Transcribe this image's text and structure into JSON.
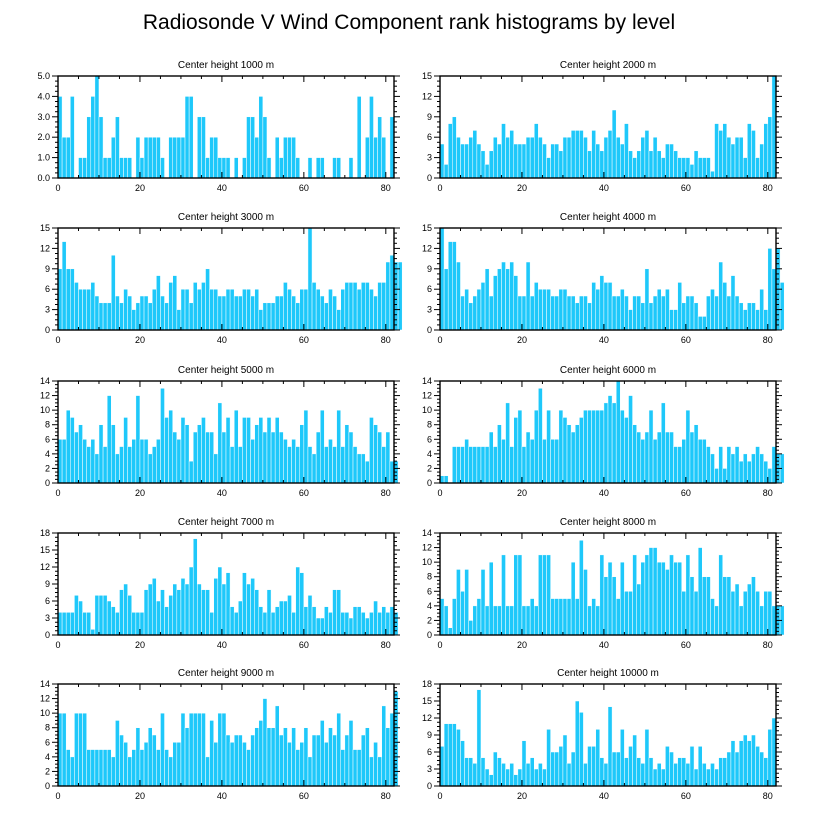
{
  "figure_title": "Radiosonde V Wind Component rank histograms by level",
  "colors": {
    "bar": "#1ec8fa",
    "frame": "#000000",
    "background": "#ffffff"
  },
  "chart_data": [
    {
      "type": "bar",
      "title": "Center height 1000 m",
      "xlim": [
        0,
        82
      ],
      "ylim": [
        0,
        5
      ],
      "xticks": [
        0,
        20,
        40,
        60,
        80
      ],
      "yticks": [
        0,
        1,
        2,
        3,
        4,
        5
      ],
      "ytick_labels": [
        "0.0",
        "1.0",
        "2.0",
        "3.0",
        "4.0",
        "5.0"
      ],
      "values": [
        4,
        2,
        2,
        4,
        0,
        1,
        1,
        3,
        4,
        5,
        3,
        1,
        1,
        2,
        3,
        1,
        1,
        1,
        0,
        2,
        1,
        2,
        2,
        2,
        2,
        1,
        0,
        2,
        2,
        2,
        2,
        4,
        4,
        0,
        3,
        3,
        1,
        2,
        2,
        1,
        1,
        1,
        0,
        1,
        0,
        1,
        3,
        3,
        2,
        4,
        3,
        1,
        0,
        2,
        1,
        2,
        2,
        2,
        1,
        0,
        0,
        1,
        0,
        1,
        1,
        0,
        0,
        1,
        1,
        0,
        0,
        1,
        0,
        4,
        0,
        2,
        4,
        2,
        3,
        2,
        0,
        3
      ]
    },
    {
      "type": "bar",
      "title": "Center height 2000 m",
      "xlim": [
        0,
        82
      ],
      "ylim": [
        0,
        15
      ],
      "xticks": [
        0,
        20,
        40,
        60,
        80
      ],
      "yticks": [
        0,
        3,
        6,
        9,
        12,
        15
      ],
      "ytick_labels": [
        "0",
        "3",
        "6",
        "9",
        "12",
        "15"
      ],
      "values": [
        5,
        2,
        8,
        9,
        6,
        5,
        5,
        6,
        7,
        5,
        4,
        2,
        4,
        6,
        5,
        8,
        6,
        7,
        5,
        5,
        5,
        6,
        6,
        8,
        6,
        5,
        3,
        5,
        5,
        4,
        6,
        6,
        7,
        7,
        7,
        6,
        4,
        7,
        5,
        4,
        6,
        7,
        10,
        6,
        5,
        8,
        4,
        3,
        4,
        6,
        7,
        4,
        6,
        4,
        3,
        5,
        5,
        4,
        3,
        3,
        3,
        2,
        4,
        3,
        3,
        3,
        1,
        8,
        7,
        8,
        6,
        5,
        6,
        6,
        3,
        8,
        7,
        3,
        5,
        8,
        9,
        15
      ]
    },
    {
      "type": "bar",
      "title": "Center height 3000 m",
      "xlim": [
        0,
        82
      ],
      "ylim": [
        0,
        15
      ],
      "xticks": [
        0,
        20,
        40,
        60,
        80
      ],
      "yticks": [
        0,
        3,
        6,
        9,
        12,
        15
      ],
      "ytick_labels": [
        "0",
        "3",
        "6",
        "9",
        "12",
        "15"
      ],
      "values": [
        9,
        13,
        9,
        9,
        7,
        6,
        6,
        6,
        7,
        5,
        4,
        4,
        4,
        11,
        5,
        4,
        6,
        5,
        3,
        4,
        5,
        5,
        4,
        6,
        8,
        5,
        4,
        7,
        8,
        3,
        6,
        6,
        4,
        7,
        6,
        7,
        9,
        6,
        6,
        5,
        5,
        6,
        6,
        5,
        5,
        6,
        6,
        5,
        6,
        3,
        4,
        4,
        4,
        5,
        5,
        7,
        6,
        5,
        4,
        6,
        6,
        15,
        7,
        6,
        5,
        4,
        6,
        5,
        3,
        6,
        7,
        7,
        7,
        6,
        7,
        7,
        6,
        5,
        7,
        7,
        10,
        11,
        10,
        10
      ]
    },
    {
      "type": "bar",
      "title": "Center height 4000 m",
      "xlim": [
        0,
        82
      ],
      "ylim": [
        0,
        15
      ],
      "xticks": [
        0,
        20,
        40,
        60,
        80
      ],
      "yticks": [
        0,
        3,
        6,
        9,
        12,
        15
      ],
      "ytick_labels": [
        "0",
        "3",
        "6",
        "9",
        "12",
        "15"
      ],
      "values": [
        15,
        9,
        13,
        13,
        10,
        5,
        6,
        4,
        5,
        6,
        7,
        9,
        5,
        8,
        9,
        10,
        9,
        10,
        8,
        5,
        5,
        10,
        5,
        7,
        6,
        6,
        6,
        5,
        5,
        6,
        6,
        5,
        5,
        4,
        5,
        5,
        4,
        7,
        6,
        8,
        7,
        7,
        5,
        5,
        6,
        5,
        3,
        5,
        5,
        4,
        9,
        4,
        5,
        6,
        5,
        6,
        3,
        3,
        7,
        4,
        5,
        5,
        4,
        2,
        2,
        5,
        6,
        5,
        10,
        7,
        5,
        8,
        5,
        4,
        3,
        4,
        4,
        3,
        6,
        3,
        12,
        9,
        12,
        7
      ]
    },
    {
      "type": "bar",
      "title": "Center height 5000 m",
      "xlim": [
        0,
        82
      ],
      "ylim": [
        0,
        14
      ],
      "xticks": [
        0,
        20,
        40,
        60,
        80
      ],
      "yticks": [
        0,
        2,
        4,
        6,
        8,
        10,
        12,
        14
      ],
      "ytick_labels": [
        "0",
        "2",
        "4",
        "6",
        "8",
        "10",
        "12",
        "14"
      ],
      "values": [
        6,
        6,
        10,
        9,
        7,
        8,
        6,
        5,
        6,
        4,
        8,
        5,
        12,
        8,
        4,
        5,
        9,
        5,
        6,
        12,
        6,
        6,
        4,
        5,
        6,
        13,
        9,
        10,
        7,
        6,
        9,
        8,
        3,
        7,
        8,
        9,
        7,
        7,
        4,
        11,
        7,
        9,
        5,
        10,
        5,
        9,
        9,
        6,
        8,
        9,
        7,
        9,
        7,
        9,
        7,
        6,
        5,
        6,
        5,
        8,
        10,
        5,
        4,
        7,
        10,
        5,
        6,
        5,
        10,
        5,
        8,
        7,
        5,
        4,
        4,
        3,
        9,
        8,
        7,
        5,
        7,
        3,
        3
      ]
    },
    {
      "type": "bar",
      "title": "Center height 6000 m",
      "xlim": [
        0,
        82
      ],
      "ylim": [
        0,
        14
      ],
      "xticks": [
        0,
        20,
        40,
        60,
        80
      ],
      "yticks": [
        0,
        2,
        4,
        6,
        8,
        10,
        12,
        14
      ],
      "ytick_labels": [
        "0",
        "2",
        "4",
        "6",
        "8",
        "10",
        "12",
        "14"
      ],
      "values": [
        1,
        1,
        0,
        5,
        5,
        5,
        6,
        5,
        5,
        5,
        5,
        5,
        7,
        5,
        8,
        6,
        11,
        5,
        9,
        10,
        5,
        7,
        6,
        10,
        13,
        6,
        10,
        6,
        6,
        10,
        9,
        8,
        7,
        8,
        9,
        10,
        10,
        10,
        10,
        10,
        11,
        12,
        11,
        14,
        10,
        9,
        12,
        8,
        7,
        6,
        7,
        10,
        6,
        7,
        11,
        7,
        7,
        5,
        5,
        6,
        10,
        7,
        8,
        6,
        6,
        5,
        4,
        2,
        5,
        2,
        5,
        4,
        5,
        3,
        4,
        3,
        4,
        5,
        4,
        3,
        2,
        5,
        4,
        4
      ]
    },
    {
      "type": "bar",
      "title": "Center height 7000 m",
      "xlim": [
        0,
        82
      ],
      "ylim": [
        0,
        18
      ],
      "xticks": [
        0,
        20,
        40,
        60,
        80
      ],
      "yticks": [
        0,
        3,
        6,
        9,
        12,
        15,
        18
      ],
      "ytick_labels": [
        "0",
        "3",
        "6",
        "9",
        "12",
        "15",
        "18"
      ],
      "values": [
        4,
        4,
        4,
        4,
        7,
        6,
        4,
        4,
        1,
        7,
        7,
        7,
        6,
        5,
        4,
        8,
        9,
        7,
        4,
        4,
        4,
        8,
        9,
        10,
        6,
        8,
        5,
        7,
        9,
        8,
        10,
        9,
        12,
        17,
        9,
        8,
        8,
        4,
        10,
        12,
        9,
        11,
        5,
        4,
        6,
        11,
        9,
        10,
        8,
        5,
        4,
        8,
        4,
        5,
        6,
        6,
        7,
        4,
        12,
        11,
        5,
        7,
        5,
        3,
        3,
        5,
        4,
        8,
        8,
        4,
        4,
        3,
        5,
        5,
        4,
        3,
        4,
        6,
        4,
        5,
        4,
        5,
        4
      ]
    },
    {
      "type": "bar",
      "title": "Center height 8000 m",
      "xlim": [
        0,
        82
      ],
      "ylim": [
        0,
        14
      ],
      "xticks": [
        0,
        20,
        40,
        60,
        80
      ],
      "yticks": [
        0,
        2,
        4,
        6,
        8,
        10,
        12,
        14
      ],
      "ytick_labels": [
        "0",
        "2",
        "4",
        "6",
        "8",
        "10",
        "12",
        "14"
      ],
      "values": [
        5,
        4,
        1,
        5,
        9,
        6,
        9,
        2,
        4,
        5,
        9,
        4,
        10,
        4,
        4,
        11,
        4,
        4,
        11,
        11,
        4,
        4,
        5,
        4,
        11,
        11,
        11,
        5,
        5,
        5,
        5,
        5,
        10,
        5,
        13,
        9,
        4,
        5,
        4,
        11,
        8,
        10,
        8,
        5,
        10,
        6,
        6,
        11,
        7,
        10,
        11,
        12,
        12,
        10,
        10,
        9,
        11,
        10,
        10,
        6,
        11,
        8,
        6,
        12,
        8,
        8,
        5,
        4,
        11,
        8,
        8,
        6,
        7,
        4,
        6,
        7,
        8,
        6,
        4,
        6,
        6,
        4,
        4,
        4
      ]
    },
    {
      "type": "bar",
      "title": "Center height 9000 m",
      "xlim": [
        0,
        82
      ],
      "ylim": [
        0,
        14
      ],
      "xticks": [
        0,
        20,
        40,
        60,
        80
      ],
      "yticks": [
        0,
        2,
        4,
        6,
        8,
        10,
        12,
        14
      ],
      "ytick_labels": [
        "0",
        "2",
        "4",
        "6",
        "8",
        "10",
        "12",
        "14"
      ],
      "values": [
        10,
        10,
        5,
        4,
        10,
        10,
        10,
        5,
        5,
        5,
        5,
        5,
        5,
        4,
        9,
        7,
        6,
        4,
        5,
        8,
        5,
        6,
        8,
        7,
        5,
        10,
        5,
        4,
        6,
        6,
        10,
        8,
        10,
        10,
        10,
        10,
        4,
        9,
        6,
        10,
        10,
        7,
        6,
        7,
        7,
        6,
        5,
        7,
        8,
        9,
        12,
        8,
        8,
        11,
        7,
        8,
        6,
        8,
        5,
        6,
        8,
        4,
        7,
        7,
        9,
        6,
        8,
        7,
        10,
        5,
        7,
        9,
        5,
        5,
        7,
        8,
        4,
        6,
        4,
        11,
        8,
        10,
        13
      ]
    },
    {
      "type": "bar",
      "title": "Center height 10000 m",
      "xlim": [
        0,
        82
      ],
      "ylim": [
        0,
        18
      ],
      "xticks": [
        0,
        20,
        40,
        60,
        80
      ],
      "yticks": [
        0,
        3,
        6,
        9,
        12,
        15,
        18
      ],
      "ytick_labels": [
        "0",
        "3",
        "6",
        "9",
        "12",
        "15",
        "18"
      ],
      "values": [
        7,
        11,
        11,
        11,
        10,
        8,
        5,
        5,
        4,
        17,
        5,
        3,
        2,
        6,
        5,
        4,
        3,
        4,
        2,
        3,
        8,
        4,
        5,
        3,
        4,
        3,
        10,
        6,
        6,
        7,
        9,
        4,
        6,
        15,
        13,
        4,
        7,
        7,
        10,
        5,
        4,
        14,
        6,
        6,
        10,
        5,
        7,
        9,
        5,
        4,
        10,
        5,
        3,
        4,
        3,
        7,
        6,
        4,
        5,
        5,
        4,
        7,
        3,
        7,
        4,
        3,
        4,
        3,
        5,
        5,
        6,
        8,
        6,
        8,
        9,
        8,
        9,
        7,
        6,
        5,
        10,
        12
      ]
    }
  ]
}
